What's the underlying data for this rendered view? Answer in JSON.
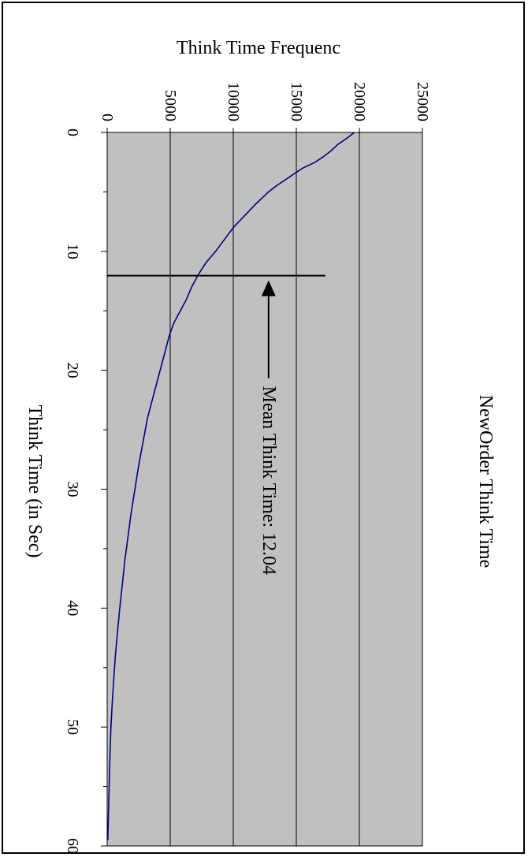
{
  "chart_data": {
    "type": "line",
    "title": "NewOrder Think Time",
    "xlabel": "Think Time (in Sec)",
    "ylabel": "Think Time Frequenc",
    "xlim": [
      0,
      60
    ],
    "ylim": [
      0,
      25000
    ],
    "x_ticks": [
      "0",
      "10",
      "20",
      "30",
      "40",
      "50",
      "60"
    ],
    "y_ticks": [
      "0",
      "5000",
      "10000",
      "15000",
      "20000",
      "25000"
    ],
    "grid": true,
    "plot_background": "#c0c0c0",
    "series": [
      {
        "color": "#000080",
        "x": [
          0,
          0.5,
          1,
          1.5,
          2,
          2.5,
          3,
          3.5,
          4,
          4.5,
          5,
          6,
          7,
          8,
          9,
          10,
          11,
          12,
          13,
          14,
          15,
          16,
          17,
          18,
          20,
          22,
          24,
          26,
          28,
          30,
          32,
          34,
          36,
          38,
          40,
          42,
          44,
          46,
          48,
          50,
          52,
          54,
          56,
          58,
          59.5
        ],
        "y": [
          19600,
          19000,
          18300,
          17800,
          17200,
          16500,
          15500,
          14800,
          14100,
          13400,
          12800,
          11800,
          10900,
          10000,
          9300,
          8600,
          7800,
          7200,
          6700,
          6300,
          5800,
          5300,
          4950,
          4700,
          4200,
          3700,
          3200,
          2850,
          2500,
          2200,
          1900,
          1650,
          1400,
          1200,
          1000,
          820,
          650,
          520,
          400,
          300,
          230,
          180,
          130,
          90,
          50
        ]
      }
    ],
    "annotation": {
      "text": "Mean Think Time: 12.04",
      "x": 12.04
    }
  }
}
